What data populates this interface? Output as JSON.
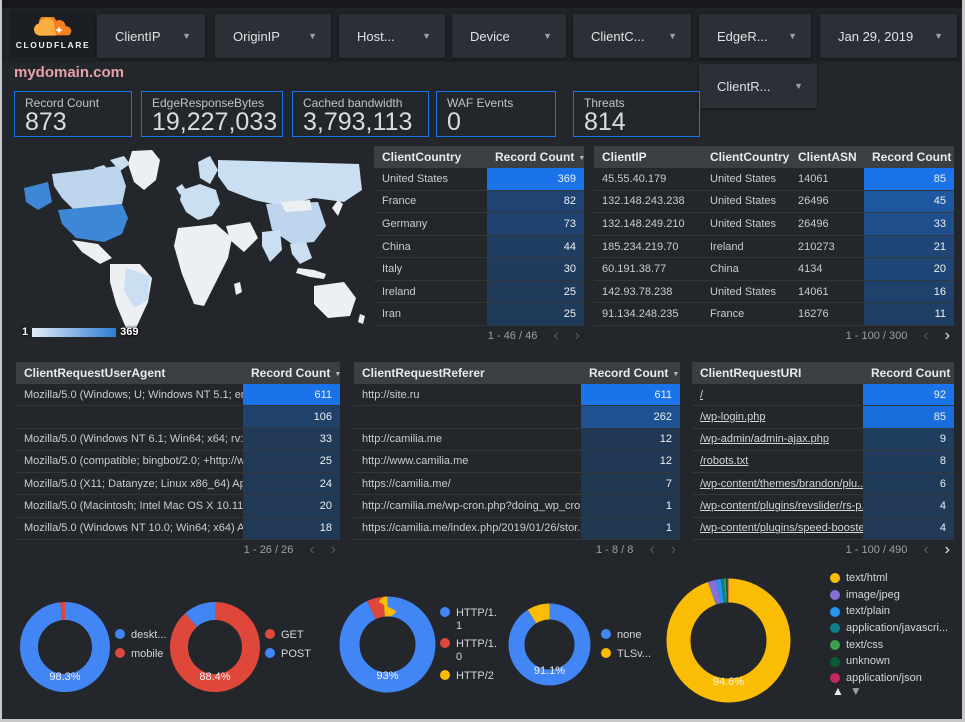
{
  "header": {
    "logo_text": "CLOUDFLARE",
    "filters": [
      "ClientIP",
      "OriginIP",
      "Host...",
      "Device",
      "ClientC...",
      "EdgeR..."
    ],
    "date_label": "Jan 29, 2019",
    "filter_row2": "ClientR...",
    "domain": "mydomain.com"
  },
  "scorecards": [
    {
      "label": "Record Count",
      "value": "873"
    },
    {
      "label": "EdgeResponseBytes",
      "value": "19,227,033"
    },
    {
      "label": "Cached bandwidth",
      "value": "3,793,113"
    },
    {
      "label": "WAF Events",
      "value": "0"
    },
    {
      "label": "Threats",
      "value": "814"
    }
  ],
  "map": {
    "scale_min": "1",
    "scale_max": "369"
  },
  "tables": {
    "country": {
      "headers": [
        "ClientCountry",
        "Record Count"
      ],
      "rows": [
        [
          "United States",
          369
        ],
        [
          "France",
          82
        ],
        [
          "Germany",
          73
        ],
        [
          "China",
          44
        ],
        [
          "Italy",
          30
        ],
        [
          "Ireland",
          25
        ],
        [
          "Iran",
          25
        ]
      ],
      "pagination": {
        "range": "1 - 46 / 46",
        "prev": false,
        "next": false
      }
    },
    "clientip": {
      "headers": [
        "ClientIP",
        "ClientCountry",
        "ClientASN",
        "Record Count"
      ],
      "rows": [
        [
          "45.55.40.179",
          "United States",
          "14061",
          85
        ],
        [
          "132.148.243.238",
          "United States",
          "26496",
          45
        ],
        [
          "132.148.249.210",
          "United States",
          "26496",
          33
        ],
        [
          "185.234.219.70",
          "Ireland",
          "210273",
          21
        ],
        [
          "60.191.38.77",
          "China",
          "4134",
          20
        ],
        [
          "142.93.78.238",
          "United States",
          "14061",
          16
        ],
        [
          "91.134.248.235",
          "France",
          "16276",
          11
        ]
      ],
      "pagination": {
        "range": "1 - 100 / 300",
        "prev": false,
        "next": true
      }
    },
    "useragent": {
      "headers": [
        "ClientRequestUserAgent",
        "Record Count"
      ],
      "rows": [
        [
          "Mozilla/5.0 (Windows; U; Windows NT 5.1; en-U...",
          611
        ],
        [
          "",
          106
        ],
        [
          "Mozilla/5.0 (Windows NT 6.1; Win64; x64; rv:64...",
          33
        ],
        [
          "Mozilla/5.0 (compatible; bingbot/2.0; +http://w...",
          25
        ],
        [
          "Mozilla/5.0 (X11; Datanyze; Linux x86_64) Appl...",
          24
        ],
        [
          "Mozilla/5.0 (Macintosh; Intel Mac OS X 10.11; r...",
          20
        ],
        [
          "Mozilla/5.0 (Windows NT 10.0; Win64; x64) App...",
          18
        ]
      ],
      "pagination": {
        "range": "1 - 26 / 26",
        "prev": false,
        "next": false
      }
    },
    "referer": {
      "headers": [
        "ClientRequestReferer",
        "Record Count"
      ],
      "rows": [
        [
          "http://site.ru",
          611
        ],
        [
          "",
          262
        ],
        [
          "http://camilia.me",
          12
        ],
        [
          "http://www.camilia.me",
          12
        ],
        [
          "https://camilia.me/",
          7
        ],
        [
          "http://camilia.me/wp-cron.php?doing_wp_cron...",
          1
        ],
        [
          "https://camilia.me/index.php/2019/01/26/stor...",
          1
        ]
      ],
      "pagination": {
        "range": "1 - 8 / 8",
        "prev": false,
        "next": false
      }
    },
    "uri": {
      "headers": [
        "ClientRequestURI",
        "Record Count"
      ],
      "rows": [
        [
          "/",
          92
        ],
        [
          "/wp-login.php",
          85
        ],
        [
          "/wp-admin/admin-ajax.php",
          9
        ],
        [
          "/robots.txt",
          8
        ],
        [
          "/wp-content/themes/brandon/plu...",
          6
        ],
        [
          "/wp-content/plugins/revslider/rs-p...",
          4
        ],
        [
          "/wp-content/plugins/speed-booste...",
          4
        ]
      ],
      "pagination": {
        "range": "1 - 100 / 490",
        "prev": false,
        "next": true
      }
    }
  },
  "palette": {
    "blue": "#4285f4",
    "red": "#e0473b",
    "yellow": "#fbbc04",
    "purple": "#8570d9",
    "lightblue": "#2196f3",
    "teal": "#0c7f8a",
    "green": "#3ba24e",
    "darkgreen": "#0a5b33",
    "magenta": "#c72665",
    "heat_low": "#203750",
    "heat_high": "#1a73e8"
  },
  "donuts": [
    {
      "percent_label": "98.3%",
      "slices": [
        {
          "label": "deskt...",
          "value": 98.3,
          "color": "blue"
        },
        {
          "label": "mobile",
          "value": 1.7,
          "color": "red"
        }
      ]
    },
    {
      "percent_label": "88.4%",
      "slices": [
        {
          "label": "GET",
          "value": 88.4,
          "color": "red"
        },
        {
          "label": "POST",
          "value": 11.6,
          "color": "blue"
        }
      ]
    },
    {
      "percent_label": "93%",
      "slices": [
        {
          "label": "HTTP/1.1",
          "value": 93,
          "color": "blue"
        },
        {
          "label": "HTTP/1.0",
          "value": 5.5,
          "color": "red"
        },
        {
          "label": "HTTP/2",
          "value": 1.5,
          "color": "yellow"
        }
      ]
    },
    {
      "percent_label": "91.1%",
      "slices": [
        {
          "label": "none",
          "value": 91.1,
          "color": "blue"
        },
        {
          "label": "TLSv...",
          "value": 8.9,
          "color": "yellow"
        }
      ]
    },
    {
      "percent_label": "94.6%",
      "slices": [
        {
          "label": "text/html",
          "value": 94.6,
          "color": "yellow"
        },
        {
          "label": "image/jpeg",
          "value": 2.2,
          "color": "purple"
        },
        {
          "label": "text/plain",
          "value": 1.2,
          "color": "lightblue"
        },
        {
          "label": "application/javascri...",
          "value": 0.8,
          "color": "teal"
        },
        {
          "label": "text/css",
          "value": 0.5,
          "color": "green"
        },
        {
          "label": "unknown",
          "value": 0.4,
          "color": "darkgreen"
        },
        {
          "label": "application/json",
          "value": 0.3,
          "color": "magenta"
        }
      ]
    }
  ],
  "legend_arrows": {
    "up": "▲",
    "down": "▼"
  }
}
